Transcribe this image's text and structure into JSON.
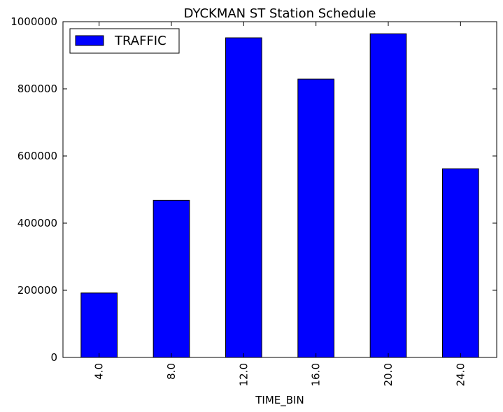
{
  "chart_data": {
    "type": "bar",
    "title": "DYCKMAN ST Station Schedule",
    "xlabel": "TIME_BIN",
    "ylabel": "",
    "categories": [
      "4.0",
      "8.0",
      "12.0",
      "16.0",
      "20.0",
      "24.0"
    ],
    "series": [
      {
        "name": "TRAFFIC",
        "color": "#0000ff",
        "values": [
          192000,
          468000,
          952000,
          829000,
          964000,
          562000
        ]
      }
    ],
    "ylim": [
      0,
      1000000
    ],
    "yticks": [
      0,
      200000,
      400000,
      600000,
      800000,
      1000000
    ],
    "ytick_labels": [
      "0",
      "200000",
      "400000",
      "600000",
      "800000",
      "1000000"
    ],
    "grid": false,
    "legend_position": "top-left"
  }
}
